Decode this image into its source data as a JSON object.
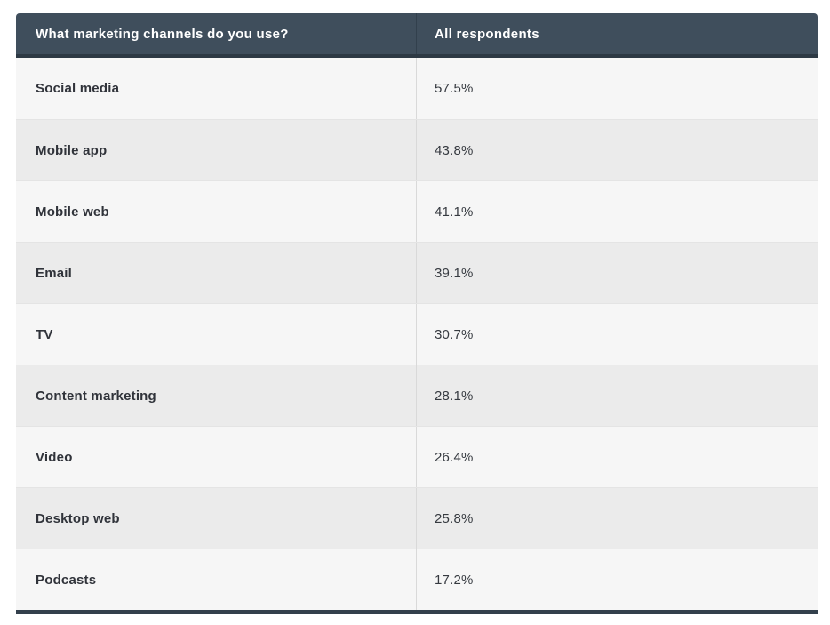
{
  "table": {
    "header": {
      "question": "What marketing channels do you use?",
      "respondents": "All respondents"
    },
    "rows": [
      {
        "channel": "Social media",
        "value": "57.5%"
      },
      {
        "channel": "Mobile app",
        "value": "43.8%"
      },
      {
        "channel": "Mobile web",
        "value": "41.1%"
      },
      {
        "channel": "Email",
        "value": "39.1%"
      },
      {
        "channel": "TV",
        "value": "30.7%"
      },
      {
        "channel": "Content marketing",
        "value": "28.1%"
      },
      {
        "channel": "Video",
        "value": "26.4%"
      },
      {
        "channel": "Desktop web",
        "value": "25.8%"
      },
      {
        "channel": "Podcasts",
        "value": "17.2%"
      }
    ]
  },
  "colors": {
    "header_background": "#3f4e5c",
    "header_text": "#ffffff",
    "scroll_shadow": "#2d3944",
    "row_light": "#f6f6f6",
    "row_dark": "#ebebeb",
    "label_text": "#30333a",
    "value_text": "#363a40",
    "column_divider": "#d9d9d9"
  },
  "chart_data": {
    "type": "table",
    "title": "What marketing channels do you use?",
    "columns": [
      "What marketing channels do you use?",
      "All respondents"
    ],
    "categories": [
      "Social media",
      "Mobile app",
      "Mobile web",
      "Email",
      "TV",
      "Content marketing",
      "Video",
      "Desktop web",
      "Podcasts"
    ],
    "values": [
      57.5,
      43.8,
      41.1,
      39.1,
      30.7,
      28.1,
      26.4,
      25.8,
      17.2
    ],
    "value_unit": "%",
    "series": [
      {
        "name": "All respondents",
        "values": [
          57.5,
          43.8,
          41.1,
          39.1,
          30.7,
          28.1,
          26.4,
          25.8,
          17.2
        ]
      }
    ]
  }
}
